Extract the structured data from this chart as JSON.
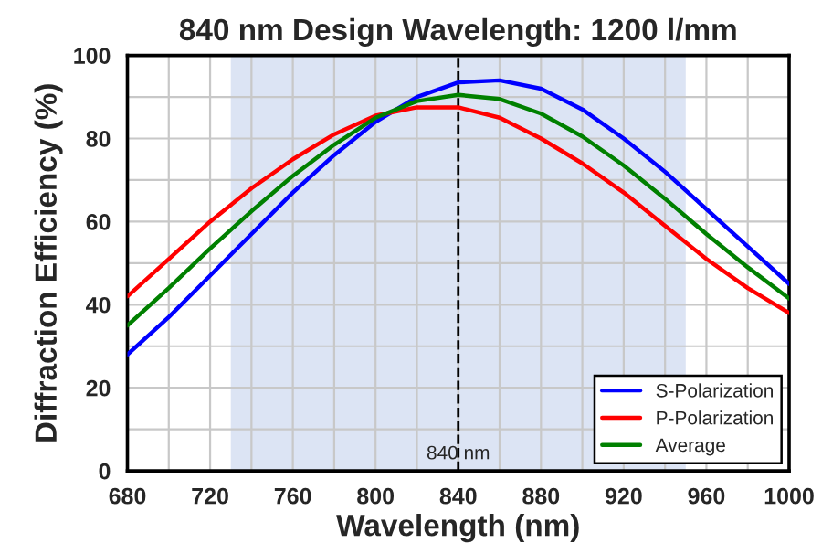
{
  "chart_data": {
    "type": "line",
    "title": "840 nm Design Wavelength: 1200 l/mm",
    "xlabel": "Wavelength (nm)",
    "ylabel": "Diffraction Efficiency (%)",
    "x": [
      680,
      700,
      720,
      740,
      760,
      780,
      800,
      820,
      840,
      860,
      880,
      900,
      920,
      940,
      960,
      980,
      1000
    ],
    "series": [
      {
        "name": "S-Polarization",
        "color": "#0000ff",
        "values": [
          28,
          37,
          47,
          57,
          67,
          76,
          84,
          90,
          93.5,
          94,
          92,
          87,
          80,
          72,
          63,
          54,
          45
        ]
      },
      {
        "name": "P-Polarization",
        "color": "#ff0000",
        "values": [
          42,
          51,
          60,
          68,
          75,
          81,
          85.5,
          87.5,
          87.5,
          85,
          80,
          74,
          67,
          59,
          51,
          44,
          38
        ]
      },
      {
        "name": "Average",
        "color": "#008000",
        "values": [
          35,
          44,
          53.5,
          62.5,
          71,
          78.5,
          85,
          89,
          90.5,
          89.5,
          86,
          80.5,
          73.5,
          65.5,
          57,
          49,
          41.5
        ]
      }
    ],
    "xlim": [
      680,
      1000
    ],
    "xticks": [
      680,
      {
        "value": 700,
        "label": null
      },
      720,
      {
        "value": 740,
        "label": null
      },
      760,
      {
        "value": 780,
        "label": null
      },
      800,
      {
        "value": 820,
        "label": null
      },
      840,
      {
        "value": 860,
        "label": null
      },
      880,
      {
        "value": 900,
        "label": null
      },
      920,
      {
        "value": 940,
        "label": null
      },
      960,
      {
        "value": 980,
        "label": null
      },
      1000
    ],
    "ylim": [
      0,
      100
    ],
    "yticks": [
      0,
      {
        "value": 10,
        "label": null
      },
      20,
      {
        "value": 30,
        "label": null
      },
      40,
      {
        "value": 50,
        "label": null
      },
      60,
      {
        "value": 70,
        "label": null
      },
      80,
      {
        "value": 90,
        "label": null
      },
      100
    ],
    "ref_lines": [
      {
        "axis": "x",
        "value": 840,
        "label": "840 nm",
        "color": "#000000",
        "line_style": "dashed"
      }
    ],
    "bands": [
      {
        "axis": "x",
        "from": 730,
        "to": 950,
        "color": "#dce4f4"
      }
    ],
    "grid": true,
    "legend": "bottom right",
    "marker": "none",
    "line_style": "solid"
  }
}
